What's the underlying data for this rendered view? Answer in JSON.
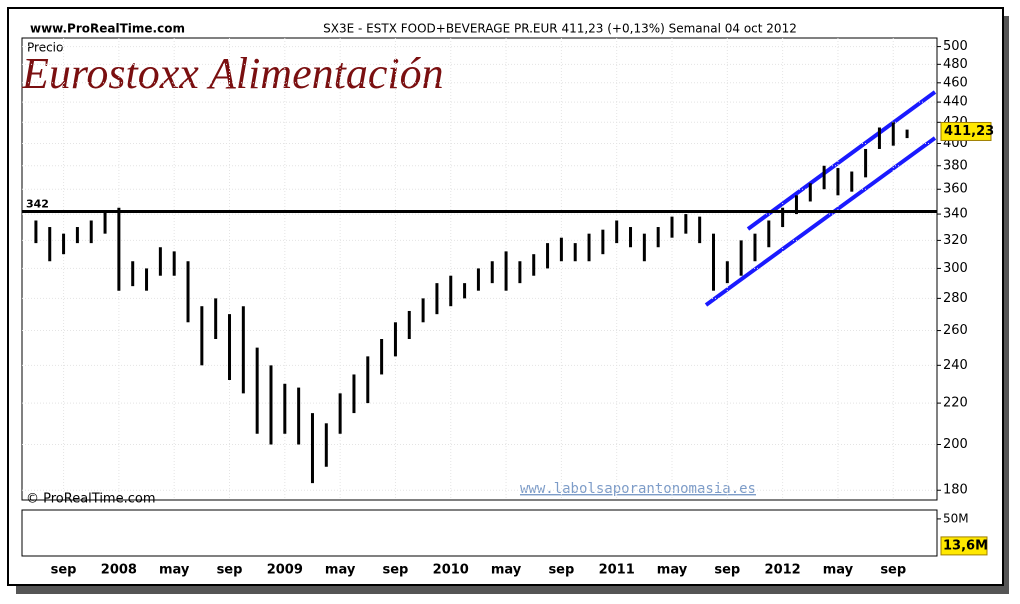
{
  "site": "www.ProRealTime.com",
  "header": "SX3E - ESTX FOOD+BEVERAGE PR.EUR   411,23 (+0,13%)   Semanal  04 oct 2012",
  "copyright": "© ProRealTime.com",
  "watermark": "www.labolsaporantonomasia.es",
  "chart_data": {
    "type": "hilo",
    "title": "Eurostoxx Alimentación",
    "y_label": "Precio",
    "color": "#000000",
    "grid": true,
    "log_scale": true,
    "categories": [
      null,
      null,
      "sep",
      null,
      null,
      null,
      "2008",
      null,
      null,
      null,
      "may",
      null,
      null,
      null,
      "sep",
      null,
      null,
      null,
      "2009",
      null,
      null,
      null,
      "may",
      null,
      null,
      null,
      "sep",
      null,
      null,
      null,
      "2010",
      null,
      null,
      null,
      "may",
      null,
      null,
      null,
      "sep",
      null,
      null,
      null,
      "2011",
      null,
      null,
      null,
      "may",
      null,
      null,
      null,
      "sep",
      null,
      null,
      null,
      "2012",
      null,
      null,
      null,
      "may",
      null,
      null,
      null,
      "sep",
      null
    ],
    "high": [
      335,
      330,
      325,
      330,
      335,
      342,
      345,
      305,
      300,
      315,
      312,
      305,
      275,
      280,
      270,
      275,
      250,
      240,
      230,
      228,
      215,
      210,
      225,
      235,
      245,
      255,
      265,
      272,
      280,
      290,
      295,
      290,
      300,
      305,
      312,
      305,
      310,
      318,
      322,
      318,
      325,
      328,
      335,
      330,
      325,
      330,
      338,
      340,
      338,
      325,
      305,
      320,
      325,
      335,
      345,
      355,
      365,
      380,
      378,
      375,
      395,
      415,
      420,
      413
    ],
    "low": [
      318,
      305,
      310,
      318,
      318,
      325,
      285,
      288,
      285,
      295,
      295,
      265,
      240,
      255,
      232,
      225,
      205,
      200,
      205,
      200,
      183,
      190,
      205,
      215,
      220,
      235,
      245,
      255,
      265,
      270,
      275,
      280,
      285,
      290,
      285,
      290,
      295,
      300,
      305,
      305,
      305,
      310,
      318,
      315,
      305,
      315,
      322,
      325,
      318,
      285,
      290,
      295,
      305,
      315,
      330,
      340,
      350,
      360,
      355,
      358,
      370,
      395,
      398,
      405
    ],
    "ylim": [
      176,
      510
    ],
    "yticks": [
      180,
      200,
      220,
      240,
      260,
      280,
      300,
      320,
      340,
      360,
      380,
      400,
      420,
      440,
      460,
      480,
      500
    ],
    "level": {
      "value": 342,
      "label": "342"
    },
    "last": {
      "value": 411.23,
      "label": "411,23"
    },
    "volume_ylim": [
      0,
      62000000
    ],
    "volume_yticks": [
      {
        "value": 50000000,
        "label": "50M"
      }
    ],
    "volume_last": {
      "value": 13600000,
      "label": "13,6M"
    }
  }
}
